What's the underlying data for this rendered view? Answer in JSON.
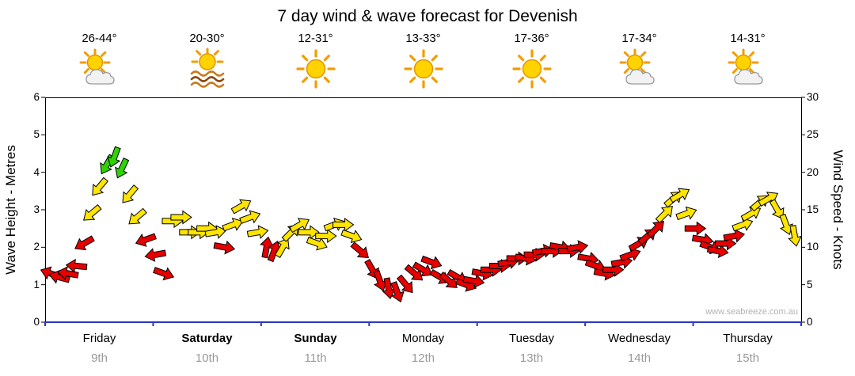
{
  "title": "7 day wind & wave forecast for Devenish",
  "watermark": "www.seabreeze.com.au",
  "days": [
    {
      "name": "Friday",
      "date": "9th",
      "temp": "26-44°",
      "icon": "sun-cloud"
    },
    {
      "name": "Saturday",
      "date": "10th",
      "temp": "20-30°",
      "icon": "sun-haze"
    },
    {
      "name": "Sunday",
      "date": "11th",
      "temp": "12-31°",
      "icon": "sun"
    },
    {
      "name": "Monday",
      "date": "12th",
      "temp": "13-33°",
      "icon": "sun"
    },
    {
      "name": "Tuesday",
      "date": "13th",
      "temp": "17-36°",
      "icon": "sun"
    },
    {
      "name": "Wednesday",
      "date": "14th",
      "temp": "17-34°",
      "icon": "sun-cloud"
    },
    {
      "name": "Thursday",
      "date": "15th",
      "temp": "14-31°",
      "icon": "sun-cloud"
    }
  ],
  "axes": {
    "left_label": "Wave Height - Metres",
    "left_ticks": [
      6,
      5,
      4,
      3,
      2,
      1,
      0
    ],
    "right_label": "Wind Speed - Knots",
    "right_ticks": [
      30,
      25,
      20,
      15,
      10,
      5,
      0
    ]
  },
  "chart_data": {
    "type": "scatter",
    "title": "7 day wind & wave forecast for Devenish",
    "x_axis": {
      "unit": "days",
      "range": [
        0,
        7
      ],
      "categories": [
        "Friday 9th",
        "Saturday 10th",
        "Sunday 11th",
        "Monday 12th",
        "Tuesday 13th",
        "Wednesday 14th",
        "Thursday 15th"
      ]
    },
    "wave_height_range": [
      0,
      6
    ],
    "wind_speed_range": [
      0,
      30
    ],
    "grid": false,
    "legend": false,
    "colors": {
      "r": "#e60000",
      "y": "#ffe400",
      "g": "#2fd400"
    },
    "point_format": [
      "time_days",
      "wind_speed_knots",
      "arrow_rotation_deg",
      "color"
    ],
    "points": [
      [
        0.05,
        6.5,
        200,
        "r"
      ],
      [
        0.13,
        6,
        195,
        "r"
      ],
      [
        0.21,
        6.5,
        190,
        "r"
      ],
      [
        0.29,
        7.5,
        185,
        "r"
      ],
      [
        0.36,
        10.5,
        150,
        "r"
      ],
      [
        0.43,
        14.5,
        140,
        "y"
      ],
      [
        0.5,
        18,
        130,
        "y"
      ],
      [
        0.57,
        21,
        120,
        "g"
      ],
      [
        0.64,
        22,
        110,
        "g"
      ],
      [
        0.71,
        20.5,
        115,
        "g"
      ],
      [
        0.78,
        17,
        130,
        "y"
      ],
      [
        0.85,
        14,
        140,
        "y"
      ],
      [
        0.93,
        11,
        160,
        "r"
      ],
      [
        1.02,
        9,
        170,
        "r"
      ],
      [
        1.1,
        6.5,
        20,
        "r"
      ],
      [
        1.18,
        13.5,
        0,
        "y"
      ],
      [
        1.26,
        14,
        0,
        "y"
      ],
      [
        1.34,
        12,
        0,
        "y"
      ],
      [
        1.42,
        12,
        0,
        "y"
      ],
      [
        1.5,
        12.5,
        0,
        "y"
      ],
      [
        1.58,
        12,
        -10,
        "y"
      ],
      [
        1.66,
        10,
        10,
        "r"
      ],
      [
        1.74,
        13,
        -20,
        "y"
      ],
      [
        1.82,
        15.5,
        -30,
        "y"
      ],
      [
        1.9,
        14,
        -20,
        "y"
      ],
      [
        1.97,
        12,
        -10,
        "y"
      ],
      [
        2.05,
        10,
        -80,
        "r"
      ],
      [
        2.12,
        9.5,
        -70,
        "r"
      ],
      [
        2.2,
        10,
        -60,
        "y"
      ],
      [
        2.28,
        12,
        -45,
        "y"
      ],
      [
        2.36,
        13,
        -30,
        "y"
      ],
      [
        2.44,
        12,
        0,
        "y"
      ],
      [
        2.52,
        10.5,
        20,
        "y"
      ],
      [
        2.6,
        11.5,
        0,
        "y"
      ],
      [
        2.68,
        13,
        -20,
        "y"
      ],
      [
        2.76,
        13,
        0,
        "y"
      ],
      [
        2.84,
        11.5,
        20,
        "y"
      ],
      [
        2.92,
        9.5,
        40,
        "r"
      ],
      [
        3.03,
        7,
        60,
        "r"
      ],
      [
        3.1,
        5.5,
        70,
        "r"
      ],
      [
        3.18,
        4.5,
        80,
        "r"
      ],
      [
        3.26,
        4,
        70,
        "r"
      ],
      [
        3.34,
        5,
        50,
        "r"
      ],
      [
        3.42,
        6.5,
        40,
        "r"
      ],
      [
        3.5,
        7,
        30,
        "r"
      ],
      [
        3.58,
        8,
        20,
        "r"
      ],
      [
        3.66,
        6,
        30,
        "r"
      ],
      [
        3.74,
        5.5,
        40,
        "r"
      ],
      [
        3.82,
        6,
        30,
        "r"
      ],
      [
        3.9,
        5,
        20,
        "r"
      ],
      [
        3.97,
        5.5,
        10,
        "r"
      ],
      [
        4.05,
        6.5,
        10,
        "r"
      ],
      [
        4.13,
        7,
        0,
        "r"
      ],
      [
        4.21,
        7.5,
        0,
        "r"
      ],
      [
        4.29,
        8,
        -10,
        "r"
      ],
      [
        4.37,
        8.5,
        0,
        "r"
      ],
      [
        4.45,
        8.5,
        10,
        "r"
      ],
      [
        4.53,
        9,
        0,
        "r"
      ],
      [
        4.61,
        9.5,
        -10,
        "r"
      ],
      [
        4.69,
        9.5,
        0,
        "r"
      ],
      [
        4.77,
        10,
        10,
        "r"
      ],
      [
        4.85,
        9.5,
        0,
        "r"
      ],
      [
        4.93,
        10,
        -10,
        "r"
      ],
      [
        5.03,
        8.5,
        10,
        "r"
      ],
      [
        5.1,
        7.5,
        20,
        "r"
      ],
      [
        5.18,
        6.5,
        10,
        "r"
      ],
      [
        5.26,
        7,
        0,
        "r"
      ],
      [
        5.34,
        8,
        -10,
        "r"
      ],
      [
        5.42,
        9,
        -20,
        "r"
      ],
      [
        5.5,
        10.5,
        -30,
        "r"
      ],
      [
        5.58,
        11.5,
        -40,
        "r"
      ],
      [
        5.66,
        12.5,
        -45,
        "r"
      ],
      [
        5.74,
        14.5,
        -45,
        "y"
      ],
      [
        5.82,
        16.5,
        -40,
        "y"
      ],
      [
        5.88,
        17,
        -30,
        "y"
      ],
      [
        5.94,
        14.5,
        -20,
        "y"
      ],
      [
        6.02,
        12.5,
        0,
        "r"
      ],
      [
        6.09,
        11,
        10,
        "r"
      ],
      [
        6.16,
        10,
        20,
        "r"
      ],
      [
        6.23,
        9.5,
        10,
        "r"
      ],
      [
        6.3,
        10.5,
        0,
        "r"
      ],
      [
        6.38,
        11.5,
        -10,
        "r"
      ],
      [
        6.46,
        13,
        -20,
        "y"
      ],
      [
        6.54,
        14.5,
        -30,
        "y"
      ],
      [
        6.62,
        16,
        -40,
        "y"
      ],
      [
        6.7,
        16.5,
        -30,
        "y"
      ],
      [
        6.78,
        15,
        60,
        "y"
      ],
      [
        6.86,
        13,
        70,
        "y"
      ],
      [
        6.94,
        11.5,
        80,
        "y"
      ]
    ]
  }
}
